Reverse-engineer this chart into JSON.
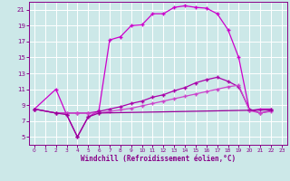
{
  "xlabel": "Windchill (Refroidissement éolien,°C)",
  "xlim": [
    -0.5,
    23.5
  ],
  "ylim": [
    4,
    22
  ],
  "xticks": [
    0,
    1,
    2,
    3,
    4,
    5,
    6,
    7,
    8,
    9,
    10,
    11,
    12,
    13,
    14,
    15,
    16,
    17,
    18,
    19,
    20,
    21,
    22,
    23
  ],
  "yticks": [
    5,
    7,
    9,
    11,
    13,
    15,
    17,
    19,
    21
  ],
  "bg_color": "#cce8e8",
  "grid_color": "#ffffff",
  "line1": {
    "x": [
      0,
      2,
      3,
      4,
      5,
      6,
      7,
      8,
      9,
      10,
      11,
      12,
      13,
      14,
      15,
      16,
      17,
      18,
      19,
      20,
      21,
      22
    ],
    "y": [
      8.5,
      11.0,
      7.8,
      5.0,
      7.5,
      8.3,
      17.2,
      17.6,
      19.0,
      19.1,
      20.5,
      20.5,
      21.3,
      21.5,
      21.3,
      21.2,
      20.5,
      18.5,
      15.0,
      8.3,
      8.5,
      8.5
    ],
    "color": "#cc00cc",
    "marker": "+"
  },
  "line2": {
    "x": [
      0,
      2,
      3,
      4,
      5,
      6,
      7,
      8,
      9,
      10,
      11,
      12,
      13,
      14,
      15,
      16,
      17,
      18,
      19,
      20,
      21,
      22
    ],
    "y": [
      8.5,
      8.0,
      8.0,
      8.0,
      8.0,
      8.2,
      8.5,
      8.8,
      9.2,
      9.5,
      10.0,
      10.3,
      10.8,
      11.2,
      11.8,
      12.2,
      12.5,
      12.0,
      11.3,
      8.5,
      8.0,
      8.3
    ],
    "color": "#aa00aa",
    "marker": "+"
  },
  "line3": {
    "x": [
      0,
      2,
      3,
      4,
      5,
      6,
      7,
      8,
      9,
      10,
      11,
      12,
      13,
      14,
      15,
      16,
      17,
      18,
      19,
      20,
      21,
      22
    ],
    "y": [
      8.5,
      8.0,
      8.0,
      8.0,
      8.0,
      8.0,
      8.2,
      8.4,
      8.6,
      8.9,
      9.2,
      9.5,
      9.8,
      10.1,
      10.4,
      10.7,
      11.0,
      11.3,
      11.5,
      8.3,
      8.0,
      8.2
    ],
    "color": "#cc44cc",
    "marker": "+"
  },
  "line4": {
    "x": [
      0,
      2,
      3,
      4,
      5,
      6,
      22
    ],
    "y": [
      8.5,
      8.0,
      7.8,
      5.0,
      7.5,
      8.0,
      8.4
    ],
    "color": "#990099",
    "marker": "+"
  }
}
